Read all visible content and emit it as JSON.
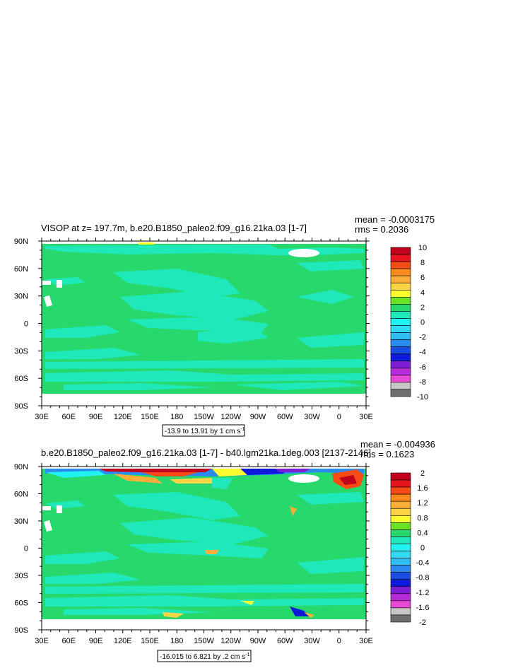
{
  "chart_data": [
    {
      "type": "heatmap",
      "title": "VISOP at z= 197.7m, b.e20.B1850_paleo2.f09_g16.21ka.03 [1-7]",
      "stats": {
        "mean": "mean = -0.0003175",
        "rms": "rms = 0.2036"
      },
      "range_text": "-13.9 to 13.91 by 1 cm s",
      "range_sup": "-1",
      "x_ticks": [
        "30E",
        "60E",
        "90E",
        "120E",
        "150E",
        "180",
        "150W",
        "120W",
        "90W",
        "60W",
        "30W",
        "0",
        "30E"
      ],
      "y_ticks": [
        "90N",
        "60N",
        "30N",
        "0",
        "30S",
        "60S",
        "90S"
      ],
      "colorbar": {
        "labels": [
          "10",
          "8",
          "6",
          "4",
          "2",
          "0",
          "-2",
          "-4",
          "-6",
          "-8",
          "-10"
        ],
        "colors": [
          "#c1001b",
          "#e8131d",
          "#f64b14",
          "#fb8a1e",
          "#fcae38",
          "#fdd446",
          "#fcfc2e",
          "#6be024",
          "#27d86c",
          "#1fe8ba",
          "#20f2f2",
          "#2ddcf4",
          "#2fbdf2",
          "#2b8af0",
          "#1a4be3",
          "#0d1adc",
          "#7d1ed6",
          "#b72cd8",
          "#e84ad6",
          "#c6c6c6",
          "#6e6e6e"
        ]
      }
    },
    {
      "type": "heatmap",
      "title": "b.e20.B1850_paleo2.f09_g16.21ka.03 [1-7] - b40.lgm21ka.1deg.003 [2137-2146]",
      "stats": {
        "mean": "mean = -0.004936",
        "rms": "rms = 0.1623"
      },
      "range_text": "-16.015 to 6.821 by .2 cm s",
      "range_sup": "-1",
      "x_ticks": [
        "30E",
        "60E",
        "90E",
        "120E",
        "150E",
        "180",
        "150W",
        "120W",
        "90W",
        "60W",
        "30W",
        "0",
        "30E"
      ],
      "y_ticks": [
        "90N",
        "60N",
        "30N",
        "0",
        "30S",
        "60S",
        "90S"
      ],
      "colorbar": {
        "labels": [
          "2",
          "1.6",
          "1.2",
          "0.8",
          "0.4",
          "0",
          "-0.4",
          "-0.8",
          "-1.2",
          "-1.6",
          "-2"
        ],
        "colors": [
          "#c1001b",
          "#e8131d",
          "#f64b14",
          "#fb8a1e",
          "#fcae38",
          "#fdd446",
          "#fcfc2e",
          "#6be024",
          "#27d86c",
          "#1fe8ba",
          "#20f2f2",
          "#2ddcf4",
          "#2fbdf2",
          "#2b8af0",
          "#1a4be3",
          "#0d1adc",
          "#7d1ed6",
          "#b72cd8",
          "#e84ad6",
          "#c6c6c6",
          "#6e6e6e"
        ]
      }
    }
  ]
}
